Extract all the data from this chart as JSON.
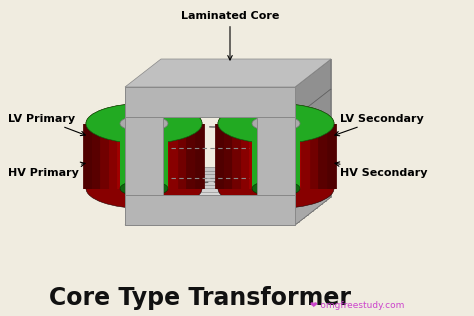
{
  "bg_color": "#f0ece0",
  "title": "Core Type Transformer",
  "title_fontsize": 17,
  "subtitle": "omgfreestudy.com",
  "laminated_core_label": "Laminated Core",
  "labels": {
    "lv_primary": "LV Primary",
    "hv_primary": "HV Primary",
    "lv_secondary": "LV Secondary",
    "hv_secondary": "HV Secondary"
  },
  "core_color": "#b0b0b0",
  "core_mid": "#989898",
  "core_dark": "#707070",
  "core_edge": "#888888",
  "coil_red": "#cc0000",
  "coil_red_dark": "#880000",
  "coil_red_mid": "#aa0000",
  "coil_green": "#22aa22",
  "coil_green_dark": "#116611",
  "label_color": "#000000",
  "arrow_color": "#444444"
}
